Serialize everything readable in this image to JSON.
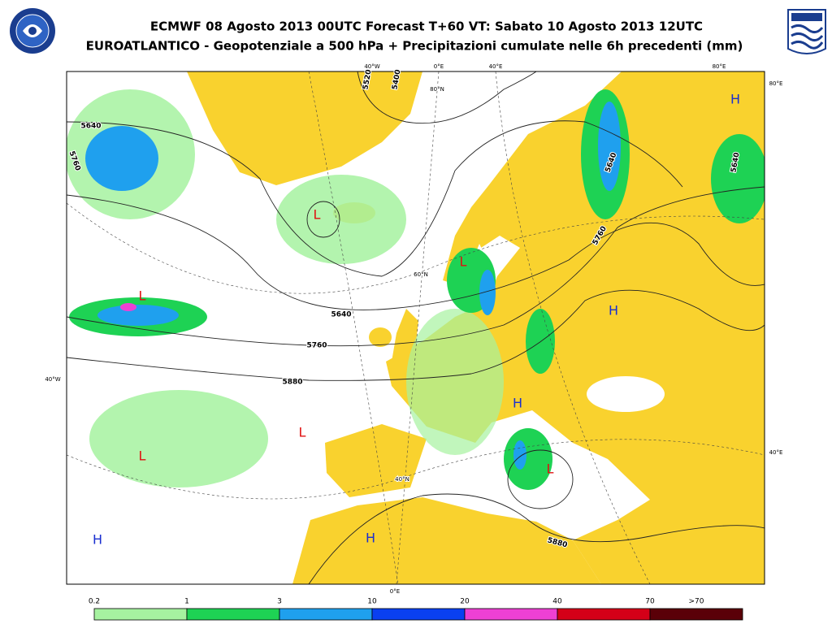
{
  "header": {
    "title": "ECMWF 08 Agosto 2013 00UTC Forecast T+60 VT: Sabato 10 Agosto 2013 12UTC",
    "subtitle": "EUROATLANTICO - Geopotenziale a 500 hPa + Precipitazioni cumulate nelle 6h precedenti (mm)"
  },
  "map": {
    "pressure_centers": [
      "L",
      "L",
      "L",
      "L",
      "L",
      "L",
      "H",
      "H",
      "H",
      "H",
      "H"
    ],
    "contour_labels": [
      "5640",
      "5760",
      "5640",
      "5760",
      "5880",
      "5760",
      "5640",
      "5640",
      "5880",
      "5400",
      "5520"
    ],
    "coordinate_labels": [
      "40°W",
      "0°E",
      "40°E",
      "80°E",
      "80°E",
      "80°N",
      "60°N",
      "40°W",
      "40°E",
      "40°N",
      "0°E"
    ]
  },
  "legend": {
    "ticks": [
      "0.2",
      "1",
      "3",
      "10",
      "20",
      "40",
      "70",
      ">70"
    ],
    "colors": [
      "#a6f2a0",
      "#1ed254",
      "#1fa0ee",
      "#0a40f0",
      "#ee40d4",
      "#d40018",
      "#5a0008"
    ]
  }
}
